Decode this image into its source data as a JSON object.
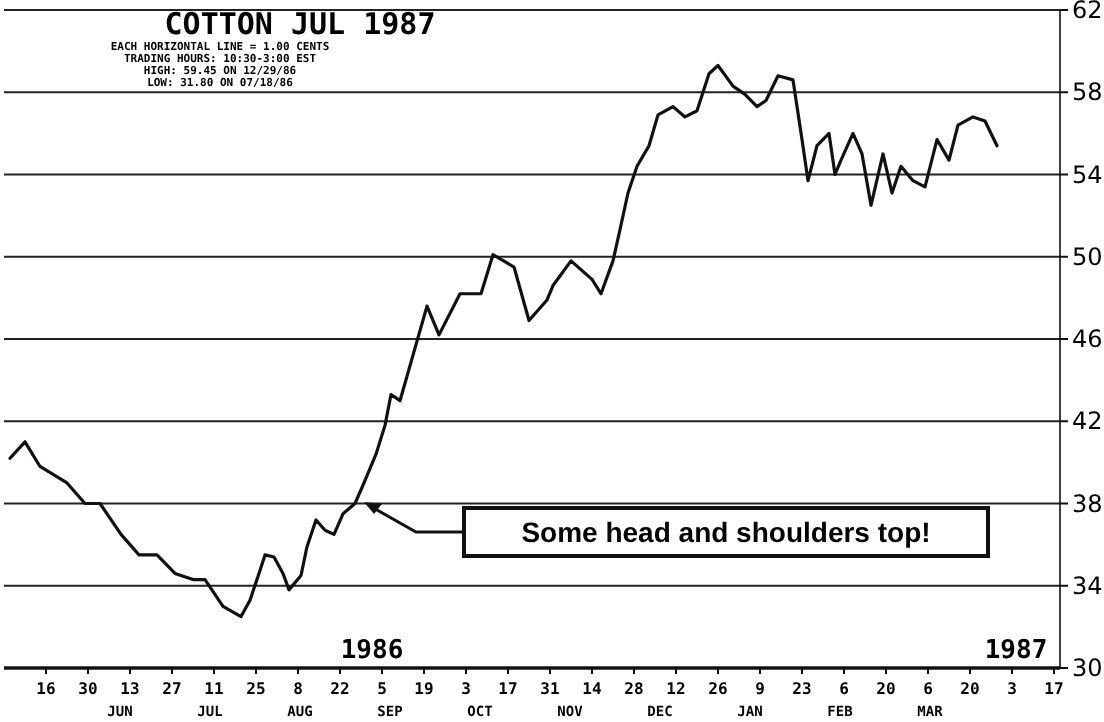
{
  "chart_data": {
    "type": "line",
    "title": "COTTON JUL 1987",
    "subtitle": "EACH HORIZONTAL LINE = 1.00 CENTS\nTRADING HOURS: 10:30-3:00 EST\nHIGH: 59.45 ON 12/29/86\nLOW: 31.80 ON 07/18/86",
    "x": [
      "1986-06-04",
      "1986-06-09",
      "1986-06-14",
      "1986-06-23",
      "1986-06-29",
      "1986-07-04",
      "1986-07-11",
      "1986-07-17",
      "1986-07-23",
      "1986-07-29",
      "1986-08-04",
      "1986-08-08",
      "1986-08-14",
      "1986-08-20",
      "1986-08-23",
      "1986-08-26",
      "1986-08-28",
      "1986-08-31",
      "1986-09-03",
      "1986-09-05",
      "1986-09-09",
      "1986-09-11",
      "1986-09-14",
      "1986-09-17",
      "1986-09-20",
      "1986-09-23",
      "1986-09-27",
      "1986-09-30",
      "1986-10-04",
      "1986-10-07",
      "1986-10-09",
      "1986-10-12",
      "1986-10-21",
      "1986-10-25",
      "1986-11-01",
      "1986-11-08",
      "1986-11-12",
      "1986-11-19",
      "1986-11-24",
      "1986-11-30",
      "1986-12-02",
      "1986-12-08",
      "1986-12-15",
      "1986-12-18",
      "1986-12-22",
      "1986-12-24",
      "1986-12-27",
      "1986-12-30",
      "1987-01-03",
      "1987-01-06",
      "1987-01-11",
      "1987-01-15",
      "1987-01-19",
      "1987-01-23",
      "1987-01-26",
      "1987-01-31",
      "1987-02-04",
      "1987-02-08",
      "1987-02-11",
      "1987-02-15",
      "1987-02-20",
      "1987-02-23",
      "1987-02-25",
      "1987-02-28",
      "1987-03-04",
      "1987-03-06",
      "1987-03-08",
      "1987-03-12",
      "1987-03-15",
      "1987-03-18",
      "1987-03-22",
      "1987-03-25",
      "1987-03-28",
      "1987-04-01",
      "1987-04-05",
      "1987-04-09",
      "1987-04-13",
      "1987-04-16",
      "1987-04-21",
      "1987-04-25",
      "1987-04-29"
    ],
    "series": [
      {
        "color": "#111111",
        "values": [
          40.2,
          41.0,
          39.8,
          39.0,
          38.0,
          38.0,
          36.5,
          35.5,
          35.5,
          34.6,
          34.3,
          34.3,
          33.0,
          32.5,
          33.3,
          34.6,
          35.5,
          35.4,
          34.6,
          33.8,
          34.5,
          35.9,
          37.2,
          36.7,
          36.5,
          37.5,
          38.0,
          39.0,
          40.4,
          41.8,
          43.3,
          43.0,
          47.6,
          46.2,
          48.2,
          48.2,
          50.1,
          49.5,
          46.9,
          47.9,
          48.6,
          49.8,
          48.9,
          48.2,
          49.8,
          51.1,
          53.1,
          54.4,
          55.4,
          56.9,
          57.3,
          56.8,
          57.1,
          58.9,
          59.3,
          58.3,
          57.9,
          57.3,
          57.6,
          58.8,
          58.6,
          55.7,
          53.7,
          55.4,
          56.0,
          54.0,
          54.7,
          56.0,
          55.0,
          52.5,
          55.0,
          53.1,
          54.4,
          53.7,
          53.4,
          55.7,
          54.7,
          56.4,
          56.8,
          56.6,
          55.4
        ]
      }
    ],
    "xlim": [
      "1986-06-02",
      "1987-05-20"
    ],
    "xticks": [
      {
        "value": "1986-06-16",
        "label": "16"
      },
      {
        "value": "1986-06-30",
        "label": "30"
      },
      {
        "value": "1986-07-14",
        "label": "13"
      },
      {
        "value": "1986-07-28",
        "label": "27"
      },
      {
        "value": "1986-08-11",
        "label": "11"
      },
      {
        "value": "1986-08-25",
        "label": "25"
      },
      {
        "value": "1986-09-08",
        "label": "8"
      },
      {
        "value": "1986-09-22",
        "label": "22"
      },
      {
        "value": "1986-10-06",
        "label": "5"
      },
      {
        "value": "1986-10-20",
        "label": "19"
      },
      {
        "value": "1986-11-03",
        "label": "3"
      },
      {
        "value": "1986-11-17",
        "label": "17"
      },
      {
        "value": "1986-12-01",
        "label": "31"
      },
      {
        "value": "1986-12-15",
        "label": "14"
      },
      {
        "value": "1986-12-29",
        "label": "28"
      },
      {
        "value": "1987-01-12",
        "label": "12"
      },
      {
        "value": "1987-01-26",
        "label": "26"
      },
      {
        "value": "1987-02-09",
        "label": "9"
      },
      {
        "value": "1987-02-23",
        "label": "23"
      },
      {
        "value": "1987-03-09",
        "label": "6"
      },
      {
        "value": "1987-03-23",
        "label": "20"
      },
      {
        "value": "1987-04-06",
        "label": "6"
      },
      {
        "value": "1987-04-20",
        "label": "20"
      },
      {
        "value": "1987-05-04",
        "label": "3"
      },
      {
        "value": "1987-05-18",
        "label": "17"
      }
    ],
    "ylim": [
      30,
      62
    ],
    "yticks": [
      30,
      34,
      38,
      42,
      46,
      50,
      54,
      58,
      62
    ],
    "grid": "y",
    "line_style": "solid",
    "annotations": [
      "Some head and shoulders top!",
      "1986",
      "1987",
      "JUN",
      "JUL",
      "AUG",
      "SEP",
      "OCT",
      "NOV",
      "DEC",
      "JAN",
      "FEB",
      "MAR"
    ]
  }
}
